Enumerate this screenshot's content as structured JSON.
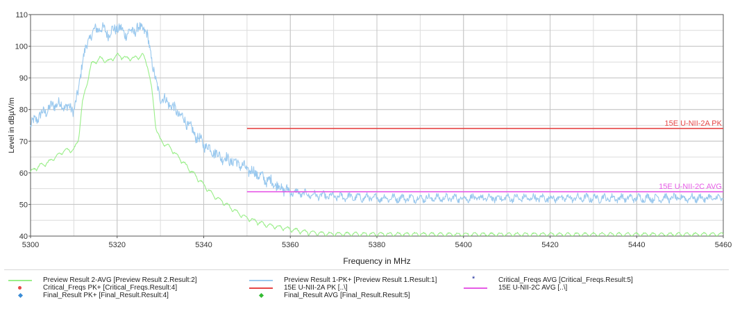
{
  "chart_data": {
    "type": "line",
    "title": "",
    "xlabel": "Frequency in MHz",
    "ylabel": "Level in dBµV/m",
    "xlim": [
      5300,
      5460
    ],
    "ylim": [
      40,
      110
    ],
    "x_ticks": [
      5300,
      5320,
      5340,
      5360,
      5380,
      5400,
      5420,
      5440,
      5460
    ],
    "x_minor_step": 10,
    "y_ticks": [
      40,
      50,
      60,
      70,
      80,
      90,
      100,
      110
    ],
    "y_minor_step": 5,
    "grid": true,
    "legend_position": "bottom",
    "series": [
      {
        "name": "Preview Result 1-PK+",
        "color": "#99c8ee",
        "style": "noisy-line",
        "x": [
          5300,
          5302,
          5304,
          5306,
          5308,
          5310,
          5311,
          5312,
          5314,
          5316,
          5318,
          5320,
          5322,
          5324,
          5326,
          5327,
          5328,
          5329,
          5330,
          5332,
          5334,
          5336,
          5338,
          5340,
          5342,
          5344,
          5346,
          5348,
          5350,
          5352,
          5354,
          5356,
          5358,
          5360,
          5365,
          5370,
          5380,
          5400,
          5420,
          5440,
          5460
        ],
        "y": [
          75,
          78,
          80,
          82,
          81,
          80,
          85,
          96,
          104,
          106,
          104,
          106,
          104,
          105,
          106,
          103,
          96,
          88,
          84,
          82,
          79,
          76,
          72,
          69,
          67,
          65,
          64,
          63,
          61,
          60,
          58,
          57,
          55,
          54,
          53,
          52.5,
          52,
          52,
          52,
          52,
          52
        ]
      },
      {
        "name": "Preview Result 2-AVG",
        "color": "#99ee88",
        "style": "scalloped-line",
        "x": [
          5300,
          5302,
          5304,
          5306,
          5308,
          5310,
          5311,
          5312,
          5314,
          5316,
          5318,
          5320,
          5322,
          5324,
          5326,
          5327,
          5328,
          5329,
          5330,
          5332,
          5334,
          5336,
          5338,
          5340,
          5342,
          5344,
          5346,
          5348,
          5350,
          5352,
          5354,
          5356,
          5358,
          5360,
          5362,
          5364,
          5366,
          5368,
          5370,
          5380,
          5400,
          5420,
          5440,
          5460
        ],
        "y": [
          60,
          62,
          63,
          65,
          67,
          67,
          70,
          82,
          94,
          96,
          95,
          97,
          96,
          96,
          97,
          94,
          86,
          74,
          70,
          68,
          65,
          62,
          59,
          56,
          53,
          51,
          49,
          47,
          45.5,
          44.5,
          43.5,
          43,
          42.5,
          42,
          41.5,
          41,
          40.8,
          40.6,
          40.5,
          40.4,
          40.3,
          40.3,
          40.3,
          40.3
        ]
      },
      {
        "name": "15E U-NII-2A PK",
        "color": "#e64646",
        "style": "limit",
        "x": [
          5350,
          5460
        ],
        "y": [
          74,
          74
        ],
        "label": "15E U-NII-2A PK"
      },
      {
        "name": "15E U-NII-2C AVG",
        "color": "#e65ae6",
        "style": "limit",
        "x": [
          5350,
          5460
        ],
        "y": [
          54,
          54
        ],
        "label": "15E U-NII-2C AVG"
      }
    ]
  },
  "legend": [
    {
      "symbol": "line",
      "color": "#99ee88",
      "name": "Preview Result 2-AVG",
      "ref": "[Preview Result 2.Result:2]"
    },
    {
      "symbol": "line",
      "color": "#99c8ee",
      "name": "Preview Result 1-PK+",
      "ref": "[Preview Result 1.Result:1]"
    },
    {
      "symbol": "star",
      "color": "#1a2a99",
      "name": "Critical_Freqs AVG",
      "ref": "[Critical_Freqs.Result:5]"
    },
    {
      "symbol": "dot",
      "color": "#e64646",
      "name": "Critical_Freqs PK+",
      "ref": "[Critical_Freqs.Result:4]"
    },
    {
      "symbol": "line",
      "color": "#e64646",
      "name": "15E U-NII-2A PK",
      "ref": "[..\\]"
    },
    {
      "symbol": "line",
      "color": "#e65ae6",
      "name": "15E U-NII-2C AVG",
      "ref": "[..\\]"
    },
    {
      "symbol": "diamond",
      "color": "#3a8cd6",
      "name": "Final_Result PK+",
      "ref": "[Final_Result.Result:4]"
    },
    {
      "symbol": "diamond",
      "color": "#33bb33",
      "name": "Final_Result AVG",
      "ref": "[Final_Result.Result:5]"
    }
  ]
}
